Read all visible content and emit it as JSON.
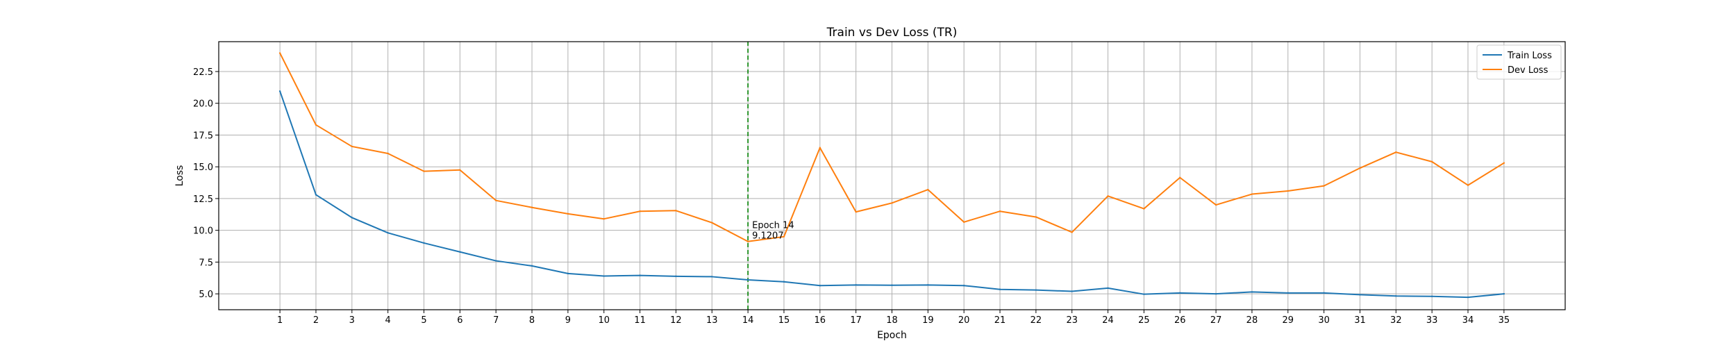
{
  "chart_data": {
    "type": "line",
    "title": "Train vs Dev Loss (TR)",
    "xlabel": "Epoch",
    "ylabel": "Loss",
    "x": [
      1,
      2,
      3,
      4,
      5,
      6,
      7,
      8,
      9,
      10,
      11,
      12,
      13,
      14,
      15,
      16,
      17,
      18,
      19,
      20,
      21,
      22,
      23,
      24,
      25,
      26,
      27,
      28,
      29,
      30,
      31,
      32,
      33,
      34,
      35
    ],
    "x_tick_labels": [
      "1",
      "2",
      "3",
      "4",
      "5",
      "6",
      "7",
      "8",
      "9",
      "10",
      "11",
      "12",
      "13",
      "14",
      "15",
      "16",
      "17",
      "18",
      "19",
      "20",
      "21",
      "22",
      "23",
      "24",
      "25",
      "26",
      "27",
      "28",
      "29",
      "30",
      "31",
      "32",
      "33",
      "34",
      "35"
    ],
    "xlim": [
      -0.7,
      36.7
    ],
    "ylim": [
      3.75,
      24.85
    ],
    "y_ticks": [
      5.0,
      7.5,
      10.0,
      12.5,
      15.0,
      17.5,
      20.0,
      22.5
    ],
    "y_tick_labels": [
      "5.0",
      "7.5",
      "10.0",
      "12.5",
      "15.0",
      "17.5",
      "20.0",
      "22.5"
    ],
    "grid": true,
    "legend_position": "top-right",
    "series": [
      {
        "name": "Train Loss",
        "color": "#1f77b4",
        "values": [
          20.95,
          12.8,
          11.0,
          9.8,
          9.0,
          8.3,
          7.6,
          7.2,
          6.6,
          6.4,
          6.45,
          6.38,
          6.35,
          6.1,
          5.95,
          5.65,
          5.7,
          5.68,
          5.7,
          5.65,
          5.35,
          5.3,
          5.2,
          5.45,
          4.97,
          5.07,
          5.0,
          5.15,
          5.07,
          5.07,
          4.93,
          4.83,
          4.8,
          4.73,
          5.0
        ]
      },
      {
        "name": "Dev Loss",
        "color": "#ff7f0e",
        "values": [
          23.95,
          18.3,
          16.6,
          16.05,
          14.65,
          14.75,
          12.35,
          11.8,
          11.3,
          10.9,
          11.5,
          11.55,
          10.6,
          9.1207,
          9.5,
          16.5,
          11.45,
          12.15,
          13.2,
          10.65,
          11.5,
          11.05,
          9.85,
          12.7,
          11.7,
          14.15,
          12.0,
          12.85,
          13.1,
          13.5,
          14.9,
          16.15,
          15.4,
          13.55,
          15.3
        ]
      }
    ],
    "vline": {
      "x": 14,
      "color": "#008000",
      "style": "dashed"
    },
    "annotation": {
      "x": 14,
      "y": 9.1207,
      "line1": "Epoch 14",
      "line2": "9.1207"
    }
  }
}
